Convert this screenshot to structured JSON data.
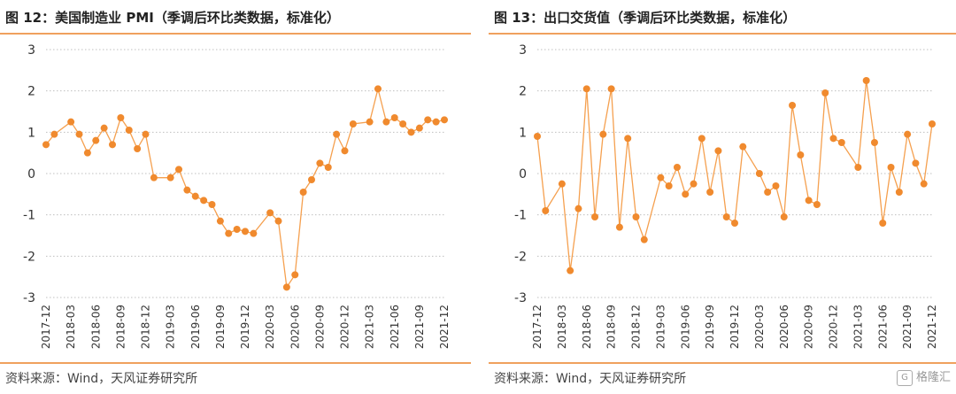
{
  "panels": [
    {
      "title": "图 12：美国制造业 PMI（季调后环比类数据，标准化）",
      "source": "资料来源：Wind，天风证券研究所"
    },
    {
      "title": "图 13：出口交货值（季调后环比类数据，标准化）",
      "source": "资料来源：Wind，天风证券研究所"
    }
  ],
  "watermark": {
    "text": "格隆汇",
    "icon": "gelonghui-logo-icon"
  },
  "colors": {
    "series": "#f5a04f",
    "marker": "#f08a2e",
    "grid": "#bfbfbf",
    "rule": "#f0a15e"
  },
  "chart_data": [
    {
      "type": "line",
      "title": "",
      "xlabel": "",
      "ylabel": "",
      "ylim": [
        -3,
        3
      ],
      "yticks": [
        3,
        2,
        1,
        0,
        -1,
        -2,
        -3
      ],
      "grid": true,
      "markers": true,
      "xticklabels": [
        "2017-12",
        "2018-03",
        "2018-06",
        "2018-09",
        "2018-12",
        "2019-03",
        "2019-06",
        "2019-09",
        "2019-12",
        "2020-03",
        "2020-06",
        "2020-09",
        "2020-12",
        "2021-03",
        "2021-06",
        "2021-09",
        "2021-12"
      ],
      "x": [
        "2017-12",
        "2018-01",
        "2018-02",
        "2018-03",
        "2018-04",
        "2018-05",
        "2018-06",
        "2018-07",
        "2018-08",
        "2018-09",
        "2018-10",
        "2018-11",
        "2018-12",
        "2019-01",
        "2019-02",
        "2019-03",
        "2019-04",
        "2019-05",
        "2019-06",
        "2019-07",
        "2019-08",
        "2019-09",
        "2019-10",
        "2019-11",
        "2019-12",
        "2020-01",
        "2020-02",
        "2020-03",
        "2020-04",
        "2020-05",
        "2020-06",
        "2020-07",
        "2020-08",
        "2020-09",
        "2020-10",
        "2020-11",
        "2020-12",
        "2021-01",
        "2021-02",
        "2021-03",
        "2021-04",
        "2021-05",
        "2021-06",
        "2021-07",
        "2021-08",
        "2021-09",
        "2021-10",
        "2021-11",
        "2021-12"
      ],
      "series": [
        {
          "values": [
            0.7,
            0.95,
            null,
            1.25,
            0.95,
            0.5,
            0.8,
            1.1,
            0.7,
            1.35,
            1.05,
            0.6,
            0.95,
            -0.1,
            null,
            -0.1,
            0.1,
            -0.4,
            -0.55,
            -0.65,
            -0.75,
            -1.15,
            -1.45,
            -1.35,
            -1.4,
            -1.45,
            null,
            -0.95,
            -1.15,
            -2.75,
            -2.45,
            -0.45,
            -0.15,
            0.25,
            0.15,
            0.95,
            0.55,
            1.2,
            null,
            1.25,
            2.05,
            1.25,
            1.35,
            1.2,
            1.0,
            1.1,
            1.3,
            1.25,
            1.3
          ]
        }
      ]
    },
    {
      "type": "line",
      "title": "",
      "xlabel": "",
      "ylabel": "",
      "ylim": [
        -3,
        3
      ],
      "yticks": [
        3,
        2,
        1,
        0,
        -1,
        -2,
        -3
      ],
      "grid": true,
      "markers": true,
      "xticklabels": [
        "2017-12",
        "2018-03",
        "2018-06",
        "2018-09",
        "2018-12",
        "2019-03",
        "2019-06",
        "2019-09",
        "2019-12",
        "2020-03",
        "2020-06",
        "2020-09",
        "2020-12",
        "2021-03",
        "2021-06",
        "2021-09",
        "2021-12"
      ],
      "x": [
        "2017-12",
        "2018-01",
        "2018-02",
        "2018-03",
        "2018-04",
        "2018-05",
        "2018-06",
        "2018-07",
        "2018-08",
        "2018-09",
        "2018-10",
        "2018-11",
        "2018-12",
        "2019-01",
        "2019-02",
        "2019-03",
        "2019-04",
        "2019-05",
        "2019-06",
        "2019-07",
        "2019-08",
        "2019-09",
        "2019-10",
        "2019-11",
        "2019-12",
        "2020-01",
        "2020-02",
        "2020-03",
        "2020-04",
        "2020-05",
        "2020-06",
        "2020-07",
        "2020-08",
        "2020-09",
        "2020-10",
        "2020-11",
        "2020-12",
        "2021-01",
        "2021-02",
        "2021-03",
        "2021-04",
        "2021-05",
        "2021-06",
        "2021-07",
        "2021-08",
        "2021-09",
        "2021-10",
        "2021-11",
        "2021-12"
      ],
      "series": [
        {
          "values": [
            0.9,
            -0.9,
            null,
            -0.25,
            -2.35,
            -0.85,
            2.05,
            -1.05,
            0.95,
            2.05,
            -1.3,
            0.85,
            -1.05,
            -1.6,
            null,
            -0.1,
            -0.3,
            0.15,
            -0.5,
            -0.25,
            0.85,
            -0.45,
            0.55,
            -1.05,
            -1.2,
            0.65,
            null,
            0.0,
            -0.45,
            -0.3,
            -1.05,
            1.65,
            0.45,
            -0.65,
            -0.75,
            1.95,
            0.85,
            0.75,
            null,
            0.15,
            2.25,
            0.75,
            -1.2,
            0.15,
            -0.45,
            0.95,
            0.25,
            -0.25,
            1.2
          ]
        }
      ]
    }
  ]
}
